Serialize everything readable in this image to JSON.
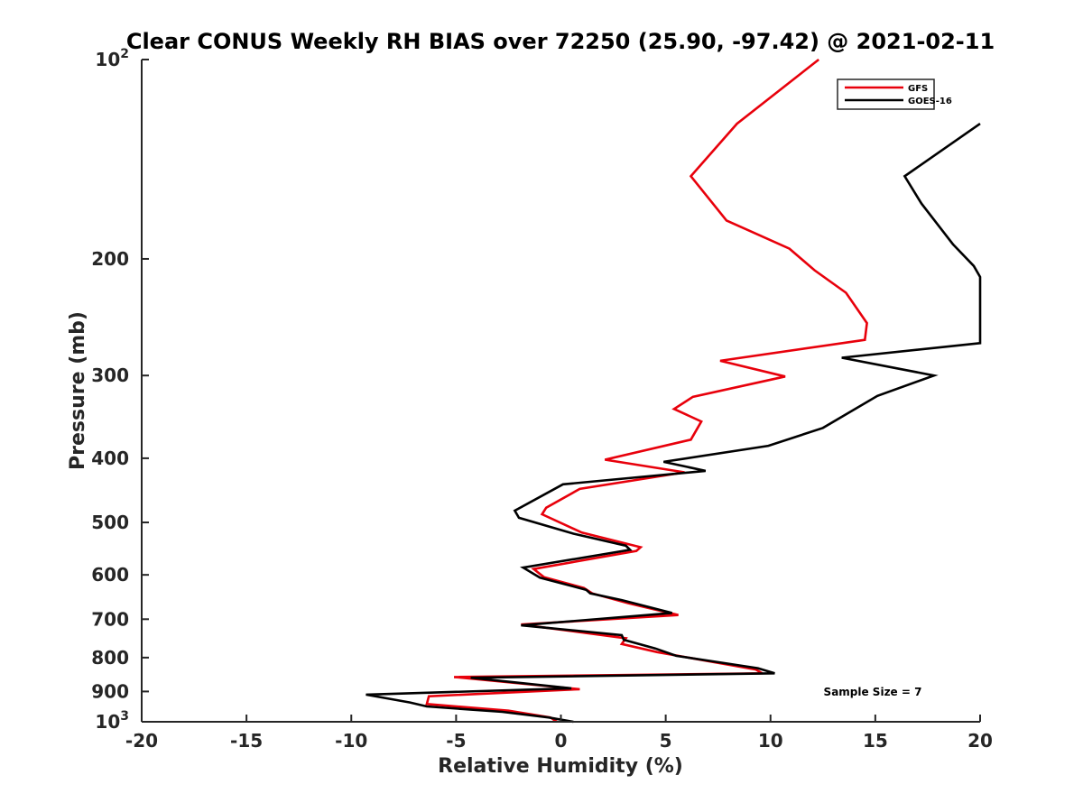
{
  "chart_data": {
    "type": "line",
    "title": "Clear CONUS Weekly RH BIAS over 72250 (25.90, -97.42) @ 2021-02-11",
    "xlabel": "Relative Humidity (%)",
    "ylabel": "Pressure (mb)",
    "xlim": [
      -20,
      20
    ],
    "ylim": [
      100,
      1000
    ],
    "yscale": "log",
    "y_reversed": true,
    "grid": false,
    "legend_position": "top-right",
    "x_ticks": [
      "-20",
      "-15",
      "-10",
      "-5",
      "0",
      "5",
      "10",
      "15",
      "20"
    ],
    "y_ticks": [
      {
        "value": 100,
        "base": "10",
        "exp": "2"
      },
      {
        "value": 200,
        "label": "200"
      },
      {
        "value": 300,
        "label": "300"
      },
      {
        "value": 400,
        "label": "400"
      },
      {
        "value": 500,
        "label": "500"
      },
      {
        "value": 600,
        "label": "600"
      },
      {
        "value": 700,
        "label": "700"
      },
      {
        "value": 800,
        "label": "800"
      },
      {
        "value": 900,
        "label": "900"
      },
      {
        "value": 1000,
        "base": "10",
        "exp": "3"
      }
    ],
    "annotation": "Sample Size = 7",
    "series": [
      {
        "name": "GFS",
        "color": "#e8000b",
        "points": [
          [
            12.3,
            100
          ],
          [
            8.4,
            125
          ],
          [
            6.2,
            150
          ],
          [
            7.9,
            175
          ],
          [
            10.9,
            193
          ],
          [
            12.1,
            208
          ],
          [
            13.6,
            225
          ],
          [
            14.6,
            250
          ],
          [
            14.5,
            265
          ],
          [
            7.6,
            285
          ],
          [
            10.7,
            301
          ],
          [
            6.3,
            323
          ],
          [
            5.4,
            337
          ],
          [
            6.7,
            352
          ],
          [
            6.2,
            375
          ],
          [
            2.1,
            402
          ],
          [
            5.9,
            420
          ],
          [
            0.9,
            445
          ],
          [
            -0.7,
            475
          ],
          [
            -0.9,
            486
          ],
          [
            1.0,
            518
          ],
          [
            3.8,
            545
          ],
          [
            3.6,
            552
          ],
          [
            -1.3,
            588
          ],
          [
            -0.8,
            605
          ],
          [
            1.1,
            628
          ],
          [
            1.5,
            640
          ],
          [
            3.2,
            662
          ],
          [
            5.6,
            690
          ],
          [
            -1.9,
            713
          ],
          [
            3.1,
            748
          ],
          [
            2.9,
            763
          ],
          [
            4.6,
            785
          ],
          [
            9.3,
            834
          ],
          [
            9.6,
            845
          ],
          [
            -5.1,
            856
          ],
          [
            0.9,
            893
          ],
          [
            -6.3,
            915
          ],
          [
            -6.4,
            940
          ],
          [
            -2.5,
            962
          ],
          [
            -0.5,
            985
          ],
          [
            -0.2,
            1000
          ]
        ]
      },
      {
        "name": "GOES-16",
        "color": "#000000",
        "points": [
          [
            20.0,
            125
          ],
          [
            16.4,
            150
          ],
          [
            17.2,
            165
          ],
          [
            18.7,
            190
          ],
          [
            19.7,
            205
          ],
          [
            20.0,
            213
          ],
          [
            20.0,
            268
          ],
          [
            13.4,
            282
          ],
          [
            17.8,
            300
          ],
          [
            15.1,
            322
          ],
          [
            12.5,
            360
          ],
          [
            9.9,
            383
          ],
          [
            4.9,
            405
          ],
          [
            6.9,
            418
          ],
          [
            0.1,
            438
          ],
          [
            -2.2,
            480
          ],
          [
            -2.0,
            492
          ],
          [
            0.6,
            520
          ],
          [
            3.1,
            542
          ],
          [
            3.3,
            550
          ],
          [
            -1.8,
            585
          ],
          [
            -1.0,
            606
          ],
          [
            1.2,
            632
          ],
          [
            1.4,
            640
          ],
          [
            2.9,
            655
          ],
          [
            5.3,
            685
          ],
          [
            -1.9,
            715
          ],
          [
            2.9,
            740
          ],
          [
            3.0,
            752
          ],
          [
            4.5,
            775
          ],
          [
            5.5,
            795
          ],
          [
            9.4,
            830
          ],
          [
            10.2,
            845
          ],
          [
            -4.3,
            858
          ],
          [
            0.5,
            890
          ],
          [
            -9.3,
            910
          ],
          [
            -7.2,
            935
          ],
          [
            -6.4,
            948
          ],
          [
            -2.8,
            966
          ],
          [
            -0.6,
            985
          ],
          [
            0.6,
            1000
          ]
        ]
      }
    ]
  }
}
